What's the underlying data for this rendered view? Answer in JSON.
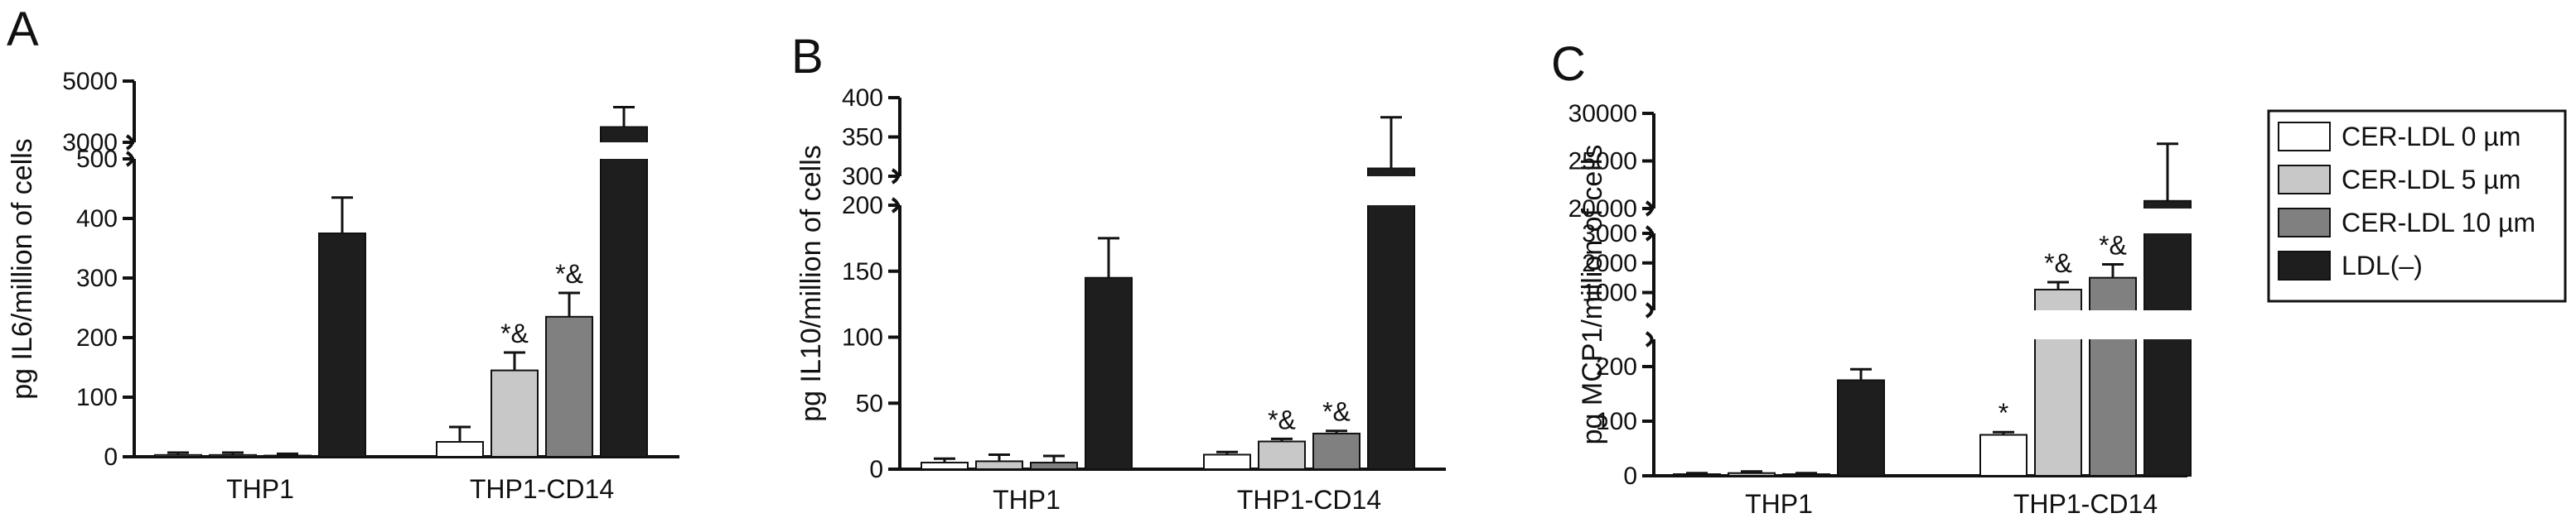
{
  "legend": {
    "entries": [
      {
        "label": "CER-LDL 0 µm",
        "color": "#ffffff"
      },
      {
        "label": "CER-LDL 5 µm",
        "color": "#c8c8c8"
      },
      {
        "label": "CER-LDL 10 µm",
        "color": "#808080"
      },
      {
        "label": "LDL(–)",
        "color": "#1e1e1e"
      }
    ]
  },
  "chart_data": [
    {
      "panel": "A",
      "type": "bar",
      "ylabel": "pg IL6/million of cells",
      "categories": [
        "THP1",
        "THP1-CD14"
      ],
      "series": [
        {
          "name": "CER-LDL 0 µm",
          "values": [
            3,
            25
          ],
          "errors": [
            4,
            25
          ],
          "annotations": [
            "",
            ""
          ]
        },
        {
          "name": "CER-LDL 5 µm",
          "values": [
            3,
            145
          ],
          "errors": [
            4,
            30
          ],
          "annotations": [
            "",
            "*&"
          ]
        },
        {
          "name": "CER-LDL 10 µm",
          "values": [
            2,
            235
          ],
          "errors": [
            3,
            40
          ],
          "annotations": [
            "",
            "*&"
          ]
        },
        {
          "name": "LDL(–)",
          "values": [
            375,
            3500
          ],
          "errors": [
            60,
            650
          ],
          "annotations": [
            "",
            ""
          ]
        }
      ],
      "segments": [
        {
          "ylim": [
            0,
            500
          ],
          "ticks": [
            0,
            100,
            200,
            300,
            400,
            500
          ]
        },
        {
          "ylim": [
            3000,
            5000
          ],
          "ticks": [
            3000,
            5000
          ]
        }
      ]
    },
    {
      "panel": "B",
      "type": "bar",
      "ylabel": "pg IL10/million of cells",
      "categories": [
        "THP1",
        "THP1-CD14"
      ],
      "series": [
        {
          "name": "CER-LDL 0 µm",
          "values": [
            5,
            11
          ],
          "errors": [
            3,
            2
          ],
          "annotations": [
            "",
            ""
          ]
        },
        {
          "name": "CER-LDL 5 µm",
          "values": [
            6,
            21
          ],
          "errors": [
            5,
            2
          ],
          "annotations": [
            "",
            "*&"
          ]
        },
        {
          "name": "CER-LDL 10 µm",
          "values": [
            5,
            27
          ],
          "errors": [
            5,
            2
          ],
          "annotations": [
            "",
            "*&"
          ]
        },
        {
          "name": "LDL(–)",
          "values": [
            145,
            310
          ],
          "errors": [
            30,
            65
          ],
          "annotations": [
            "",
            ""
          ]
        }
      ],
      "segments": [
        {
          "ylim": [
            0,
            200
          ],
          "ticks": [
            0,
            50,
            100,
            150,
            200
          ]
        },
        {
          "ylim": [
            300,
            400
          ],
          "ticks": [
            300,
            350,
            400
          ]
        }
      ]
    },
    {
      "panel": "C",
      "type": "bar",
      "ylabel": "pg MCP1/million of cells",
      "categories": [
        "THP1",
        "THP1-CD14"
      ],
      "series": [
        {
          "name": "CER-LDL 0 µm",
          "values": [
            3,
            75
          ],
          "errors": [
            2,
            5
          ],
          "annotations": [
            "",
            "*"
          ]
        },
        {
          "name": "CER-LDL 5 µm",
          "values": [
            5,
            1100
          ],
          "errors": [
            3,
            250
          ],
          "annotations": [
            "",
            "*&"
          ]
        },
        {
          "name": "CER-LDL 10 µm",
          "values": [
            3,
            1500
          ],
          "errors": [
            2,
            450
          ],
          "annotations": [
            "",
            "*&"
          ]
        },
        {
          "name": "LDL(–)",
          "values": [
            175,
            20800
          ],
          "errors": [
            20,
            6000
          ],
          "annotations": [
            "",
            ""
          ]
        }
      ],
      "segments": [
        {
          "ylim": [
            0,
            250
          ],
          "ticks": [
            0,
            100,
            200
          ]
        },
        {
          "ylim": [
            400,
            3000
          ],
          "ticks": [
            1000,
            2000,
            3000
          ]
        },
        {
          "ylim": [
            20000,
            30000
          ],
          "ticks": [
            20000,
            25000,
            30000
          ]
        }
      ]
    }
  ]
}
